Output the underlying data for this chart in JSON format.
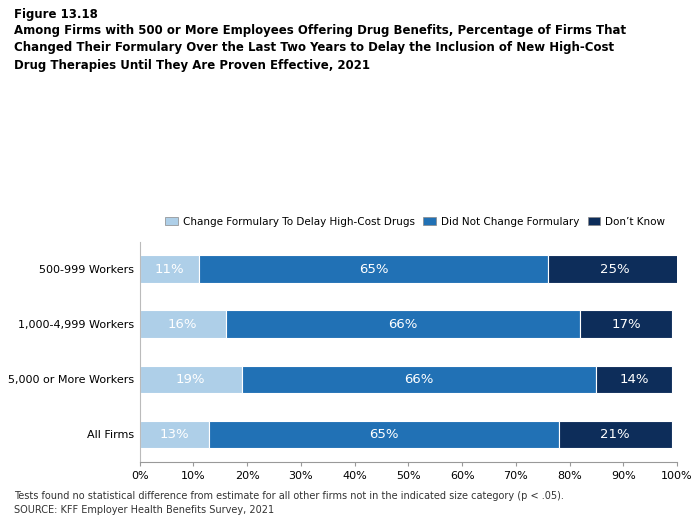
{
  "title_line1": "Figure 13.18",
  "title_line2": "Among Firms with 500 or More Employees Offering Drug Benefits, Percentage of Firms That\nChanged Their Formulary Over the Last Two Years to Delay the Inclusion of New High-Cost\nDrug Therapies Until They Are Proven Effective, 2021",
  "categories": [
    "500-999 Workers",
    "1,000-4,999 Workers",
    "5,000 or More Workers",
    "All Firms"
  ],
  "series": [
    {
      "label": "Change Formulary To Delay High-Cost Drugs",
      "color": "#aecfe8",
      "values": [
        11,
        16,
        19,
        13
      ]
    },
    {
      "label": "Did Not Change Formulary",
      "color": "#2171b5",
      "values": [
        65,
        66,
        66,
        65
      ]
    },
    {
      "label": "Don’t Know",
      "color": "#0d2d5a",
      "values": [
        25,
        17,
        14,
        21
      ]
    }
  ],
  "xlim": [
    0,
    100
  ],
  "xtick_labels": [
    "0%",
    "10%",
    "20%",
    "30%",
    "40%",
    "50%",
    "60%",
    "70%",
    "80%",
    "90%",
    "100%"
  ],
  "xtick_values": [
    0,
    10,
    20,
    30,
    40,
    50,
    60,
    70,
    80,
    90,
    100
  ],
  "footnote": "Tests found no statistical difference from estimate for all other firms not in the indicated size category (p < .05).",
  "source": "SOURCE: KFF Employer Health Benefits Survey, 2021",
  "background_color": "#ffffff",
  "bar_height": 0.5,
  "text_color_white": "#ffffff",
  "text_color_dark": "#333333"
}
